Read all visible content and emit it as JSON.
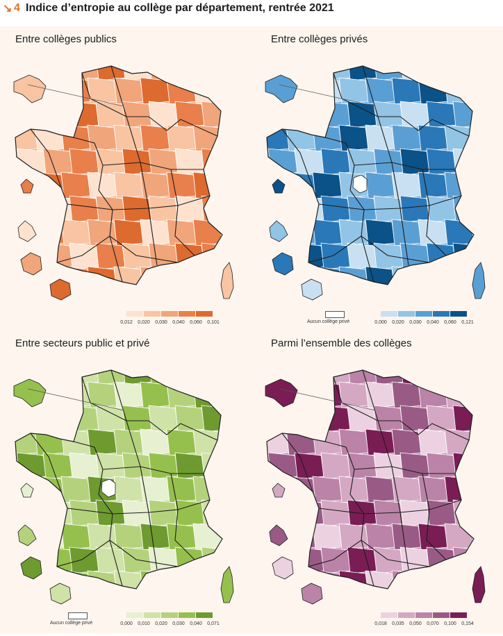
{
  "figure": {
    "arrow": "↘",
    "number": "4",
    "title": "Indice d’entropie au collège par département, rentrée 2021"
  },
  "maps": [
    {
      "title": "Entre collèges publics",
      "scheme": [
        "#fde2cf",
        "#f8c4a2",
        "#f1a57a",
        "#e97f4a",
        "#dd6a2e"
      ],
      "legend_ticks": [
        "0,012",
        "0,020",
        "0,030",
        "0,040",
        "0,060",
        "0,101"
      ],
      "has_no_data": false
    },
    {
      "title": "Entre collèges privés",
      "scheme": [
        "#c8e0f1",
        "#92c4e6",
        "#5a9fd4",
        "#2a78b8",
        "#0b5288"
      ],
      "legend_ticks": [
        "0,000",
        "0,020",
        "0,030",
        "0,040",
        "0,060",
        "0,121"
      ],
      "has_no_data": true,
      "no_data_label": "Aucun collège privé"
    },
    {
      "title": "Entre secteurs public et privé",
      "scheme": [
        "#e7f0d1",
        "#cfe2a7",
        "#b4d27c",
        "#96c04e",
        "#6e9b2f"
      ],
      "legend_ticks": [
        "0,000",
        "0,010",
        "0,020",
        "0,030",
        "0,040",
        "0,071"
      ],
      "has_no_data": true,
      "no_data_label": "Aucun collège privé"
    },
    {
      "title": "Parmi l’ensemble des collèges",
      "scheme": [
        "#ecd2e1",
        "#d4a8c3",
        "#bb83a8",
        "#9a5a86",
        "#7a1d55"
      ],
      "legend_ticks": [
        "0,018",
        "0,035",
        "0,050",
        "0,070",
        "0,100",
        "0,154"
      ],
      "has_no_data": false
    }
  ],
  "colors": {
    "figure_accent": "#e2702a",
    "panel_background": "#fdf5ee",
    "region_border": "#1d1d1b",
    "department_border": "#ffffff"
  }
}
